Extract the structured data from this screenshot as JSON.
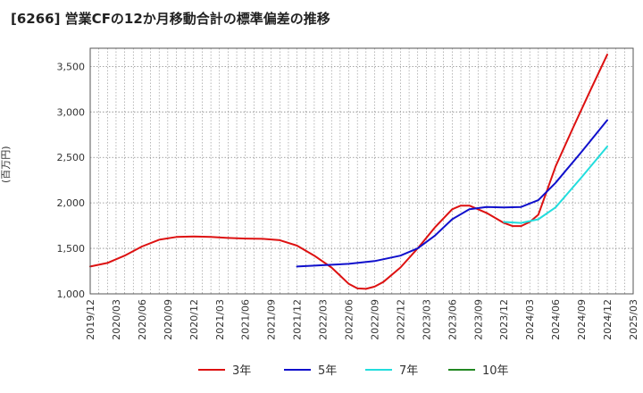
{
  "title": "[6266]  営業CFの12か月移動合計の標準偏差の推移",
  "chart_data": {
    "type": "line",
    "title": "[6266]  営業CFの12か月移動合計の標準偏差の推移",
    "ylabel": "(百万円)",
    "xlabel": "",
    "ylim": [
      1000,
      3700
    ],
    "yticks": [
      1000,
      1500,
      2000,
      2500,
      3000,
      3500
    ],
    "ytick_labels": [
      "1,000",
      "1,500",
      "2,000",
      "2,500",
      "3,000",
      "3,500"
    ],
    "xlim": [
      "2019-12",
      "2025-03"
    ],
    "xticks": [
      "2019/12",
      "2020/03",
      "2020/06",
      "2020/09",
      "2020/12",
      "2021/03",
      "2021/06",
      "2021/09",
      "2021/12",
      "2022/03",
      "2022/06",
      "2022/09",
      "2022/12",
      "2023/03",
      "2023/06",
      "2023/09",
      "2023/12",
      "2024/03",
      "2024/06",
      "2024/09",
      "2024/12",
      "2025/03"
    ],
    "grid": true,
    "legend_position": "bottom",
    "series": [
      {
        "name": "3年",
        "color": "#dd1111",
        "x": [
          "2019-12",
          "2020-02",
          "2020-04",
          "2020-06",
          "2020-08",
          "2020-10",
          "2020-12",
          "2021-02",
          "2021-04",
          "2021-06",
          "2021-08",
          "2021-10",
          "2021-12",
          "2022-02",
          "2022-04",
          "2022-05",
          "2022-06",
          "2022-07",
          "2022-08",
          "2022-09",
          "2022-10",
          "2022-12",
          "2023-02",
          "2023-04",
          "2023-06",
          "2023-07",
          "2023-08",
          "2023-10",
          "2023-12",
          "2024-01",
          "2024-02",
          "2024-03",
          "2024-04",
          "2024-06",
          "2024-08",
          "2024-10",
          "2024-12"
        ],
        "values": [
          1300,
          1340,
          1420,
          1520,
          1595,
          1625,
          1630,
          1625,
          1615,
          1608,
          1605,
          1590,
          1530,
          1420,
          1290,
          1200,
          1110,
          1060,
          1055,
          1080,
          1130,
          1290,
          1500,
          1730,
          1930,
          1970,
          1970,
          1890,
          1780,
          1745,
          1745,
          1790,
          1870,
          2400,
          2820,
          3230,
          3630
        ]
      },
      {
        "name": "5年",
        "color": "#1010cc",
        "x": [
          "2021-12",
          "2022-03",
          "2022-06",
          "2022-09",
          "2022-12",
          "2023-02",
          "2023-04",
          "2023-06",
          "2023-08",
          "2023-10",
          "2023-12",
          "2024-02",
          "2024-04",
          "2024-06",
          "2024-09",
          "2024-12"
        ],
        "values": [
          1300,
          1315,
          1330,
          1360,
          1420,
          1500,
          1640,
          1820,
          1930,
          1955,
          1950,
          1955,
          2030,
          2220,
          2560,
          2910
        ]
      },
      {
        "name": "7年",
        "color": "#22dddd",
        "x": [
          "2023-12",
          "2024-02",
          "2024-04",
          "2024-06",
          "2024-09",
          "2024-12"
        ],
        "values": [
          1790,
          1780,
          1820,
          1950,
          2280,
          2620
        ]
      },
      {
        "name": "10年",
        "color": "#228822",
        "x": [],
        "values": []
      }
    ]
  }
}
